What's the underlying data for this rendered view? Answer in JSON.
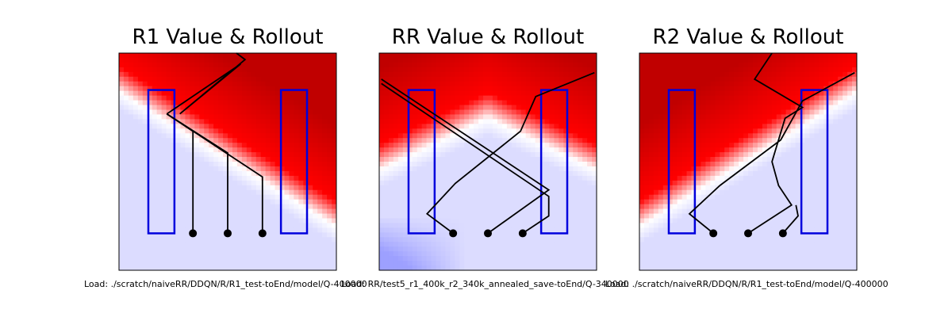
{
  "chart_data": [
    {
      "type": "heatmap",
      "title": "R1 Value & Rollout",
      "caption": "Load: ./scratch/naiveRR/DDQN/R/R1_test-toEnd/model/Q-400000",
      "colors": {
        "hot": "#ff0000",
        "hot_deep": "#c00000",
        "neutral": "#ffffff",
        "cool": "#dcdcff",
        "cool_deep": "#9da0ff",
        "obstacle": "#0000dd",
        "path": "#000000"
      },
      "field": {
        "hot_corner": "top-right",
        "boundary": "diagonal descending left-to-right"
      },
      "obstacles": [
        {
          "x": [
            0.135,
            0.255
          ],
          "y": [
            0.17,
            0.83
          ]
        },
        {
          "x": [
            0.745,
            0.865
          ],
          "y": [
            0.17,
            0.83
          ]
        }
      ],
      "paths": [
        [
          [
            0.34,
            0.83
          ],
          [
            0.34,
            0.36
          ],
          [
            0.22,
            0.28
          ]
        ],
        [
          [
            0.5,
            0.83
          ],
          [
            0.5,
            0.46
          ],
          [
            0.22,
            0.28
          ]
        ],
        [
          [
            0.66,
            0.83
          ],
          [
            0.66,
            0.57
          ],
          [
            0.22,
            0.28
          ]
        ],
        [
          [
            0.22,
            0.28
          ],
          [
            0.56,
            0.05
          ],
          [
            0.28,
            0.28
          ],
          [
            0.58,
            0.03
          ],
          [
            0.54,
            0.0
          ]
        ]
      ],
      "starts": [
        [
          0.34,
          0.83
        ],
        [
          0.5,
          0.83
        ],
        [
          0.66,
          0.83
        ]
      ]
    },
    {
      "type": "heatmap",
      "title": "RR Value & Rollout",
      "caption": "Load: RR/test5_r1_400k_r2_340k_annealed_save-toEnd/Q-340000",
      "colors": {
        "hot": "#ff0000",
        "hot_deep": "#c00000",
        "neutral": "#ffffff",
        "cool": "#dcdcff",
        "cool_deep": "#9da0ff",
        "obstacle": "#0000dd",
        "path": "#000000"
      },
      "field": {
        "hot_corner": "top",
        "boundary": "V shape"
      },
      "obstacles": [
        {
          "x": [
            0.135,
            0.255
          ],
          "y": [
            0.17,
            0.83
          ]
        },
        {
          "x": [
            0.745,
            0.865
          ],
          "y": [
            0.17,
            0.83
          ]
        }
      ],
      "paths": [
        [
          [
            0.34,
            0.83
          ],
          [
            0.22,
            0.74
          ],
          [
            0.35,
            0.6
          ],
          [
            0.65,
            0.36
          ],
          [
            0.72,
            0.2
          ],
          [
            0.99,
            0.09
          ]
        ],
        [
          [
            0.5,
            0.83
          ],
          [
            0.78,
            0.63
          ],
          [
            0.01,
            0.12
          ]
        ],
        [
          [
            0.66,
            0.83
          ],
          [
            0.78,
            0.75
          ],
          [
            0.78,
            0.66
          ],
          [
            0.01,
            0.14
          ]
        ]
      ],
      "starts": [
        [
          0.34,
          0.83
        ],
        [
          0.5,
          0.83
        ],
        [
          0.66,
          0.83
        ]
      ]
    },
    {
      "type": "heatmap",
      "title": "R2 Value & Rollout",
      "caption": "Load: ./scratch/naiveRR/DDQN/R/R1_test-toEnd/model/Q-400000",
      "colors": {
        "hot": "#ff0000",
        "hot_deep": "#c00000",
        "neutral": "#ffffff",
        "cool": "#dcdcff",
        "cool_deep": "#9da0ff",
        "obstacle": "#0000dd",
        "path": "#000000"
      },
      "field": {
        "hot_corner": "top-left",
        "boundary": "diagonal ascending left-to-right"
      },
      "obstacles": [
        {
          "x": [
            0.135,
            0.255
          ],
          "y": [
            0.17,
            0.83
          ]
        },
        {
          "x": [
            0.745,
            0.865
          ],
          "y": [
            0.17,
            0.83
          ]
        }
      ],
      "paths": [
        [
          [
            0.34,
            0.83
          ],
          [
            0.23,
            0.74
          ],
          [
            0.37,
            0.61
          ],
          [
            0.65,
            0.4
          ],
          [
            0.75,
            0.22
          ],
          [
            0.99,
            0.09
          ]
        ],
        [
          [
            0.5,
            0.83
          ],
          [
            0.7,
            0.7
          ],
          [
            0.64,
            0.61
          ],
          [
            0.61,
            0.5
          ],
          [
            0.67,
            0.3
          ],
          [
            0.75,
            0.25
          ],
          [
            0.53,
            0.12
          ],
          [
            0.61,
            0.0
          ]
        ],
        [
          [
            0.66,
            0.83
          ],
          [
            0.73,
            0.75
          ],
          [
            0.72,
            0.7
          ]
        ]
      ],
      "starts": [
        [
          0.34,
          0.83
        ],
        [
          0.5,
          0.83
        ],
        [
          0.66,
          0.83
        ]
      ]
    }
  ]
}
